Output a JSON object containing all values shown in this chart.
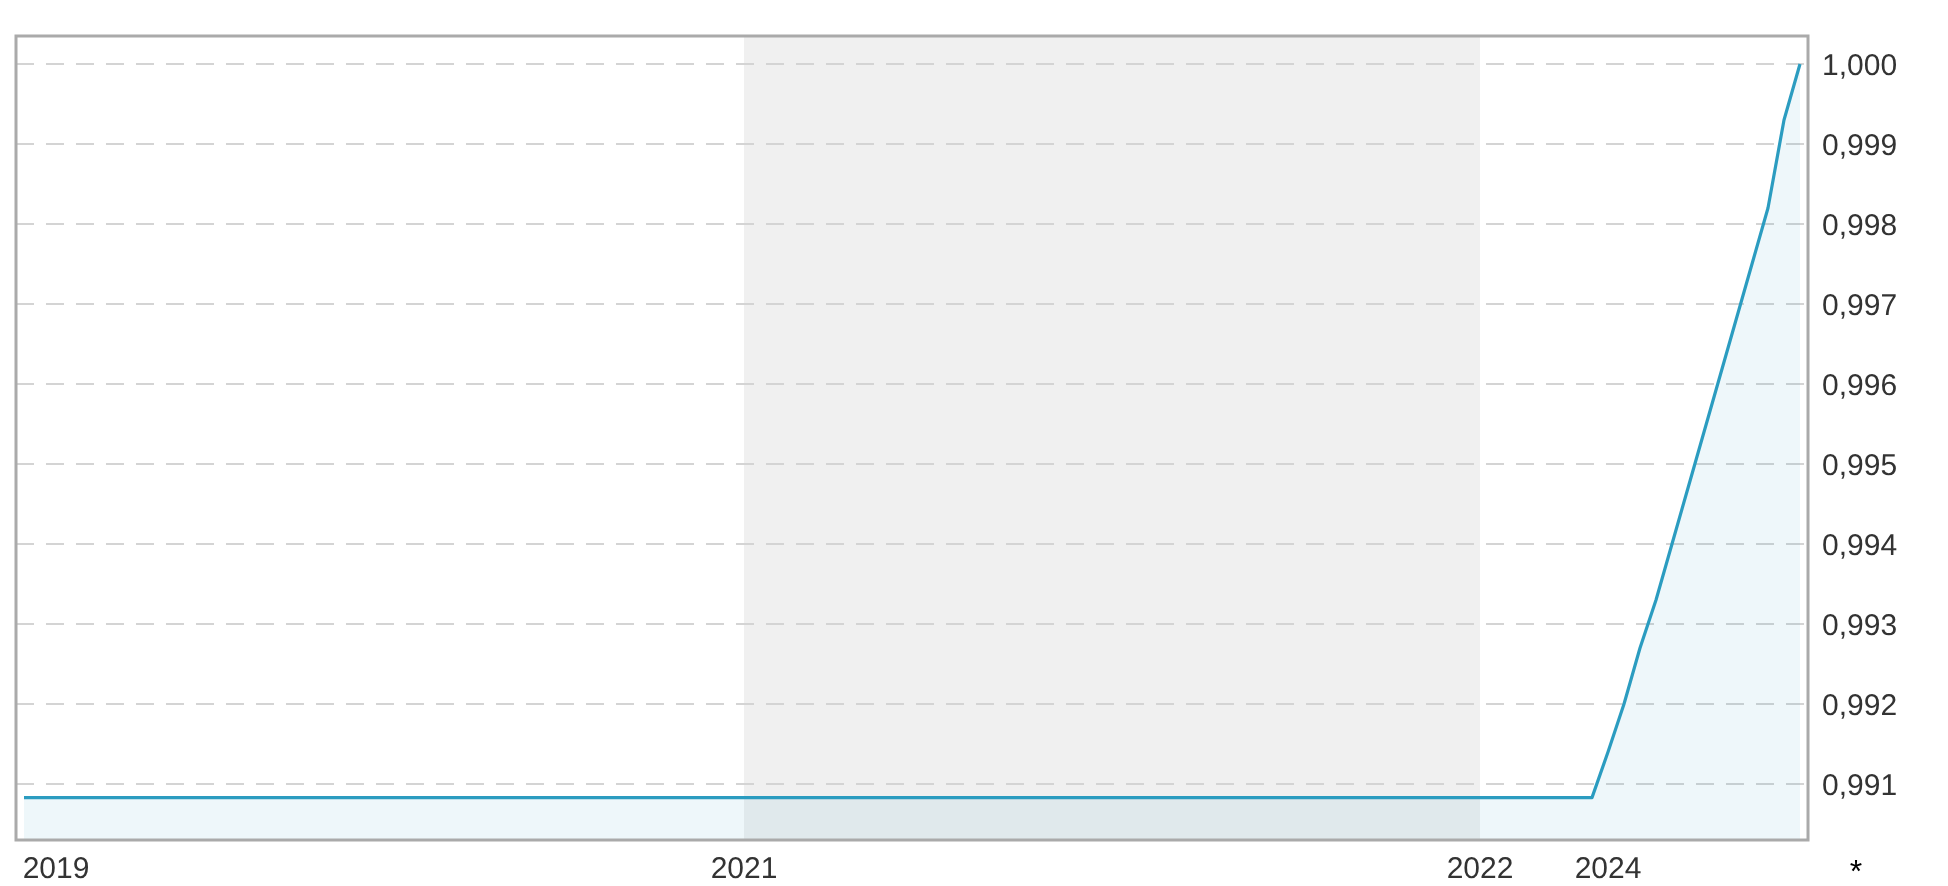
{
  "chart_data": {
    "type": "area",
    "categories": [
      null,
      null,
      "2019",
      null,
      null,
      null,
      null,
      null,
      null,
      null,
      null,
      null,
      null,
      null,
      null,
      null,
      null,
      null,
      null,
      null,
      null,
      null,
      null,
      null,
      null,
      null,
      null,
      null,
      null,
      null,
      null,
      null,
      null,
      null,
      null,
      null,
      null,
      null,
      null,
      null,
      null,
      null,
      null,
      null,
      null,
      "2021",
      null,
      null,
      null,
      null,
      null,
      null,
      null,
      null,
      null,
      null,
      null,
      null,
      null,
      null,
      null,
      null,
      null,
      null,
      null,
      null,
      null,
      null,
      null,
      null,
      null,
      null,
      null,
      null,
      null,
      null,
      null,
      null,
      null,
      null,
      null,
      null,
      null,
      null,
      null,
      null,
      null,
      null,
      null,
      null,
      null,
      "2022",
      null,
      null,
      null,
      null,
      null,
      null,
      null,
      "2024",
      null,
      null,
      null,
      null,
      null,
      null,
      null,
      null,
      null,
      null,
      null,
      null
    ],
    "series": [
      {
        "color": "#2b9cc0",
        "values": [
          0.99083,
          0.99083,
          0.99083,
          0.99083,
          0.99083,
          0.99083,
          0.99083,
          0.99083,
          0.99083,
          0.99083,
          0.99083,
          0.99083,
          0.99083,
          0.99083,
          0.99083,
          0.99083,
          0.99083,
          0.99083,
          0.99083,
          0.99083,
          0.99083,
          0.99083,
          0.99083,
          0.99083,
          0.99083,
          0.99083,
          0.99083,
          0.99083,
          0.99083,
          0.99083,
          0.99083,
          0.99083,
          0.99083,
          0.99083,
          0.99083,
          0.99083,
          0.99083,
          0.99083,
          0.99083,
          0.99083,
          0.99083,
          0.99083,
          0.99083,
          0.99083,
          0.99083,
          0.99083,
          0.99083,
          0.99083,
          0.99083,
          0.99083,
          0.99083,
          0.99083,
          0.99083,
          0.99083,
          0.99083,
          0.99083,
          0.99083,
          0.99083,
          0.99083,
          0.99083,
          0.99083,
          0.99083,
          0.99083,
          0.99083,
          0.99083,
          0.99083,
          0.99083,
          0.99083,
          0.99083,
          0.99083,
          0.99083,
          0.99083,
          0.99083,
          0.99083,
          0.99083,
          0.99083,
          0.99083,
          0.99083,
          0.99083,
          0.99083,
          0.99083,
          0.99083,
          0.99083,
          0.99083,
          0.99083,
          0.99083,
          0.99083,
          0.99083,
          0.99083,
          0.99083,
          0.99083,
          0.99083,
          0.99083,
          0.99083,
          0.99083,
          0.99083,
          0.99083,
          0.99083,
          0.99083,
          0.9914,
          0.992,
          0.9927,
          0.9933,
          0.994,
          0.9947,
          0.9954,
          0.9961,
          0.9968,
          0.9975,
          0.9982,
          0.9993,
          1.0
        ]
      }
    ],
    "ylim": [
      0.9903,
      1.00035
    ],
    "yticks": [
      {
        "value": 0.991,
        "label": "0,991"
      },
      {
        "value": 0.992,
        "label": "0,992"
      },
      {
        "value": 0.993,
        "label": "0,993"
      },
      {
        "value": 0.994,
        "label": "0,994"
      },
      {
        "value": 0.995,
        "label": "0,995"
      },
      {
        "value": 0.996,
        "label": "0,996"
      },
      {
        "value": 0.997,
        "label": "0,997"
      },
      {
        "value": 0.998,
        "label": "0,998"
      },
      {
        "value": 0.999,
        "label": "0,999"
      },
      {
        "value": 1.0,
        "label": "1,000"
      }
    ],
    "bands": [
      {
        "axis": "x",
        "from": "2021",
        "to": "2022",
        "color": "#f0f0f0"
      }
    ],
    "grid": "y",
    "line_style": "solid",
    "annotations": [
      "*"
    ]
  }
}
